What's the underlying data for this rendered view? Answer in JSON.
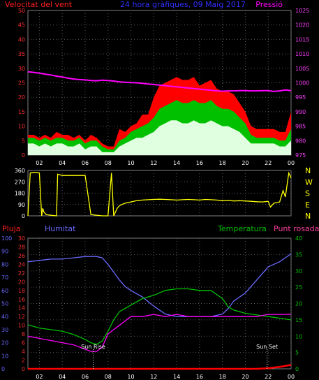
{
  "colors": {
    "wind": "#ff0000",
    "gust_fill": "#ff0000",
    "wind_avg": "#00c000",
    "wind_min": "#e0ffe0",
    "pressure": "#ff00ff",
    "direction": "#ffff00",
    "rain": "#ff0000",
    "humidity": "#6a6aff",
    "temperature": "#00c000",
    "dewpoint": "#ff00ff",
    "axis_text": "#ffffff",
    "frame": "#808080",
    "grid": "#5a5a5a"
  },
  "chart_data": [
    {
      "type": "line",
      "title": "24 hora gràfiques, 09 Maig 2017",
      "left_label": "Velocitat del vent",
      "right_label": "Pressió",
      "left_ticks": [
        "50",
        "45",
        "40",
        "35",
        "30",
        "25",
        "20",
        "15",
        "10",
        "5",
        "0"
      ],
      "right_ticks": [
        "1025",
        "1020",
        "1015",
        "1010",
        "1005",
        "1000",
        "995",
        "990",
        "985",
        "980",
        "975"
      ],
      "ylim_left": [
        0,
        50
      ],
      "ylim_right": [
        975,
        1025
      ],
      "x_ticks": [
        "02",
        "04",
        "06",
        "08",
        "10",
        "12",
        "14",
        "16",
        "18",
        "20",
        "22",
        "00"
      ],
      "x_hours": [
        1,
        1.5,
        2,
        2.5,
        3,
        3.5,
        4,
        4.5,
        5,
        5.5,
        6,
        6.5,
        7,
        7.5,
        8,
        8.5,
        9,
        9.5,
        10,
        10.5,
        11,
        11.5,
        12,
        12.5,
        13,
        13.5,
        14,
        14.5,
        15,
        15.5,
        16,
        16.5,
        17,
        17.5,
        18,
        18.5,
        19,
        19.5,
        20,
        20.5,
        21,
        21.5,
        22,
        22.5,
        23,
        23.5,
        24
      ],
      "series": [
        {
          "key": "gust",
          "values": [
            7,
            7,
            6,
            7,
            6,
            8,
            7,
            7,
            6,
            7,
            5,
            7,
            6,
            4,
            3,
            3,
            9,
            8,
            10,
            11,
            14,
            14,
            20,
            24,
            25,
            26,
            27,
            26,
            26,
            27,
            24,
            25,
            26,
            23,
            22,
            22,
            21,
            18,
            15,
            10,
            9,
            9,
            9,
            9,
            8,
            8,
            15
          ]
        },
        {
          "key": "avg",
          "values": [
            6,
            6,
            5,
            6,
            5,
            6,
            6,
            5,
            5,
            6,
            4,
            5,
            5,
            3,
            2,
            2,
            5,
            6,
            8,
            9,
            10,
            11,
            13,
            16,
            17,
            18,
            19,
            18,
            18,
            19,
            18,
            18,
            19,
            17,
            16,
            16,
            15,
            13,
            11,
            7,
            6,
            6,
            6,
            6,
            5,
            5,
            9
          ]
        },
        {
          "key": "min",
          "values": [
            4,
            4,
            3,
            4,
            3,
            4,
            4,
            3,
            3,
            4,
            2,
            3,
            3,
            1,
            1,
            1,
            3,
            4,
            5,
            6,
            6,
            7,
            8,
            10,
            11,
            12,
            12,
            11,
            11,
            12,
            11,
            11,
            12,
            11,
            10,
            10,
            9,
            8,
            6,
            4,
            4,
            4,
            4,
            4,
            3,
            3,
            5
          ]
        },
        {
          "key": "pressure",
          "values": [
            1003.8,
            1003.6,
            1003.3,
            1003,
            1002.7,
            1002.3,
            1002,
            1001.6,
            1001.3,
            1001.1,
            1001,
            1000.8,
            1000.7,
            1000.9,
            1000.8,
            1000.6,
            1000.3,
            1000.2,
            1000.1,
            1000,
            999.8,
            999.6,
            999.4,
            999.2,
            999,
            998.8,
            998.6,
            998.4,
            998.2,
            998,
            997.8,
            997.6,
            997.4,
            997.2,
            997.1,
            997.2,
            997.2,
            997.3,
            997.3,
            997.2,
            997.2,
            997.3,
            997.3,
            997,
            997.2,
            997.5,
            997.3
          ]
        }
      ]
    },
    {
      "type": "line",
      "ylim": [
        0,
        360
      ],
      "left_ticks": [
        "360",
        "270",
        "180",
        "90",
        "0"
      ],
      "right_labels": [
        "N",
        "W",
        "S",
        "E",
        "N"
      ],
      "x_hours": [
        1,
        1.2,
        1.6,
        2,
        2.2,
        2.3,
        2.4,
        2.6,
        3,
        3.5,
        3.6,
        4,
        4.3,
        4.5,
        5,
        5.5,
        6,
        6.5,
        7,
        7.5,
        8,
        8.3,
        8.5,
        8.8,
        9,
        9.2,
        9.5,
        10,
        10.5,
        11,
        11.5,
        12,
        12.5,
        13,
        13.5,
        14,
        14.5,
        15,
        15.5,
        16,
        16.5,
        17,
        17.5,
        18,
        18.5,
        19,
        19.5,
        20,
        20.5,
        21,
        21.5,
        22,
        22.2,
        22.5,
        23,
        23.3,
        23.5,
        23.8,
        24
      ],
      "values": [
        0,
        340,
        345,
        340,
        0,
        60,
        30,
        10,
        5,
        0,
        330,
        320,
        320,
        320,
        320,
        320,
        320,
        10,
        5,
        0,
        0,
        340,
        0,
        60,
        80,
        90,
        100,
        110,
        120,
        125,
        128,
        130,
        132,
        130,
        128,
        125,
        128,
        130,
        128,
        125,
        130,
        128,
        125,
        120,
        122,
        118,
        120,
        118,
        115,
        112,
        110,
        115,
        70,
        100,
        110,
        200,
        150,
        340,
        300
      ]
    },
    {
      "type": "line",
      "labels": {
        "rain": "Pluja",
        "humidity": "Humitat",
        "temperature": "Temperatura",
        "dewpoint": "Punt rosada"
      },
      "rain_ticks": [
        "100",
        "90",
        "80",
        "70",
        "60",
        "50",
        "40",
        "30",
        "20",
        "10",
        "0"
      ],
      "ylim_rain": [
        0,
        100
      ],
      "temp_left_ticks": [
        "30",
        "28",
        "26",
        "24",
        "22",
        "20",
        "18",
        "16",
        "14",
        "12",
        "10",
        "8",
        "6",
        "4",
        "2",
        "0"
      ],
      "ylim_temp_left": [
        0,
        30
      ],
      "temp_right_ticks": [
        "40",
        "35",
        "30",
        "25",
        "20",
        "15",
        "10",
        "5",
        "0"
      ],
      "ylim_temp_right": [
        0,
        40
      ],
      "x_ticks": [
        "02",
        "04",
        "06",
        "08",
        "10",
        "12",
        "14",
        "16",
        "18",
        "20",
        "22",
        "00"
      ],
      "annotations": [
        "Sun Rise",
        "Sun Set"
      ],
      "annotation_hours": [
        6.7,
        21.9
      ],
      "x_hours": [
        1,
        2,
        3,
        4,
        5,
        6,
        6.5,
        7,
        7.5,
        8,
        8.5,
        9,
        9.5,
        10,
        11,
        12,
        13,
        14,
        15,
        16,
        17,
        18,
        18.5,
        19,
        20,
        21,
        22,
        23,
        24
      ],
      "series": [
        {
          "key": "humidity",
          "values": [
            82,
            83,
            84,
            84,
            85,
            86,
            86,
            86,
            85,
            80,
            74,
            68,
            63,
            60,
            55,
            48,
            42,
            40,
            40,
            40,
            40,
            42,
            46,
            52,
            58,
            68,
            78,
            82,
            88
          ]
        },
        {
          "key": "temperature",
          "values": [
            13.5,
            12.5,
            12,
            11.5,
            10.5,
            9,
            8,
            7.5,
            8.5,
            11.5,
            15,
            17.5,
            18.5,
            19.5,
            21.5,
            22.5,
            24,
            24.5,
            24.5,
            24,
            24,
            21.5,
            19,
            18,
            17,
            16.5,
            16,
            15.5,
            15
          ]
        },
        {
          "key": "dewpoint",
          "values": [
            7.5,
            7,
            6.5,
            6,
            5.5,
            4.5,
            4,
            4,
            5,
            8,
            9,
            10,
            11,
            12,
            12,
            12.5,
            12,
            12.5,
            12,
            12,
            12,
            12,
            12,
            12,
            12,
            12,
            12.5,
            12.5,
            12.5
          ]
        },
        {
          "key": "rain",
          "values": [
            0,
            0,
            0,
            0,
            0,
            0,
            0,
            0,
            0,
            0,
            0,
            0,
            0,
            0,
            0,
            0,
            0,
            0,
            0,
            0,
            0,
            0,
            0,
            0,
            0,
            0,
            0.5,
            1.5,
            3
          ]
        }
      ]
    }
  ]
}
